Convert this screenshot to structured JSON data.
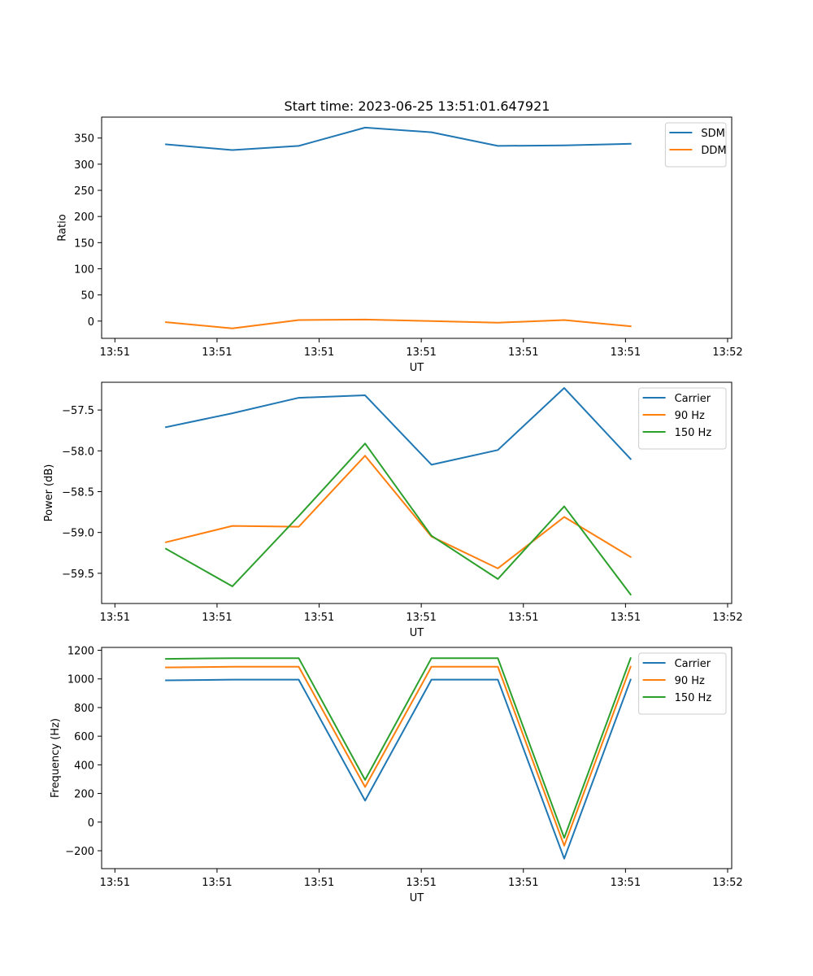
{
  "figure_title": "Start time: 2023-06-25 13:51:01.647921",
  "chart_data": [
    {
      "type": "line",
      "xlabel": "UT",
      "ylabel": "Ratio",
      "xlim": [
        -0.13,
        6.04
      ],
      "ylim": [
        -33,
        390
      ],
      "x": [
        0.5,
        1.15,
        1.8,
        2.45,
        3.1,
        3.75,
        4.4,
        5.05
      ],
      "xticks": [
        0,
        1,
        2,
        3,
        4,
        5,
        6
      ],
      "xticklabels": [
        "13:51",
        "13:51",
        "13:51",
        "13:51",
        "13:51",
        "13:51",
        "13:52"
      ],
      "yticks": [
        0,
        50,
        100,
        150,
        200,
        250,
        300,
        350
      ],
      "yticklabels": [
        "0",
        "50",
        "100",
        "150",
        "200",
        "250",
        "300",
        "350"
      ],
      "legend_position": "top-right",
      "grid": false,
      "series": [
        {
          "name": "SDM",
          "color": "#1f77b4",
          "values": [
            338,
            327,
            335,
            370,
            361,
            335,
            336,
            339
          ]
        },
        {
          "name": "DDM",
          "color": "#ff7f0e",
          "values": [
            -2,
            -14,
            2,
            3,
            0,
            -3,
            2,
            -10
          ]
        }
      ]
    },
    {
      "type": "line",
      "xlabel": "UT",
      "ylabel": "Power (dB)",
      "xlim": [
        -0.13,
        6.04
      ],
      "ylim": [
        -59.87,
        -57.16
      ],
      "x": [
        0.5,
        1.15,
        1.8,
        2.45,
        3.1,
        3.75,
        4.4,
        5.05
      ],
      "xticks": [
        0,
        1,
        2,
        3,
        4,
        5,
        6
      ],
      "xticklabels": [
        "13:51",
        "13:51",
        "13:51",
        "13:51",
        "13:51",
        "13:51",
        "13:52"
      ],
      "yticks": [
        -59.5,
        -59.0,
        -58.5,
        -58.0,
        -57.5
      ],
      "yticklabels": [
        "−59.5",
        "−59.0",
        "−58.5",
        "−58.0",
        "−57.5"
      ],
      "legend_position": "top-right",
      "grid": false,
      "series": [
        {
          "name": "Carrier",
          "color": "#1f77b4",
          "values": [
            -57.71,
            -57.54,
            -57.35,
            -57.32,
            -58.17,
            -57.99,
            -57.23,
            -58.1
          ]
        },
        {
          "name": "90 Hz",
          "color": "#ff7f0e",
          "values": [
            -59.12,
            -58.92,
            -58.93,
            -58.06,
            -59.05,
            -59.44,
            -58.81,
            -59.3
          ]
        },
        {
          "name": "150 Hz",
          "color": "#2ca02c",
          "values": [
            -59.2,
            -59.66,
            -58.8,
            -57.91,
            -59.04,
            -59.57,
            -58.68,
            -59.76
          ]
        }
      ]
    },
    {
      "type": "line",
      "xlabel": "UT",
      "ylabel": "Frequency (Hz)",
      "xlim": [
        -0.13,
        6.04
      ],
      "ylim": [
        -325,
        1220
      ],
      "x": [
        0.5,
        1.15,
        1.8,
        2.45,
        3.1,
        3.75,
        4.4,
        5.05
      ],
      "xticks": [
        0,
        1,
        2,
        3,
        4,
        5,
        6
      ],
      "xticklabels": [
        "13:51",
        "13:51",
        "13:51",
        "13:51",
        "13:51",
        "13:51",
        "13:52"
      ],
      "yticks": [
        -200,
        0,
        200,
        400,
        600,
        800,
        1000,
        1200
      ],
      "yticklabels": [
        "−200",
        "0",
        "200",
        "400",
        "600",
        "800",
        "1000",
        "1200"
      ],
      "legend_position": "top-right",
      "grid": false,
      "series": [
        {
          "name": "Carrier",
          "color": "#1f77b4",
          "values": [
            990,
            995,
            995,
            150,
            995,
            995,
            -255,
            995
          ]
        },
        {
          "name": "90 Hz",
          "color": "#ff7f0e",
          "values": [
            1080,
            1085,
            1085,
            245,
            1085,
            1085,
            -165,
            1085
          ]
        },
        {
          "name": "150 Hz",
          "color": "#2ca02c",
          "values": [
            1140,
            1145,
            1145,
            295,
            1145,
            1145,
            -110,
            1145
          ]
        }
      ]
    }
  ]
}
